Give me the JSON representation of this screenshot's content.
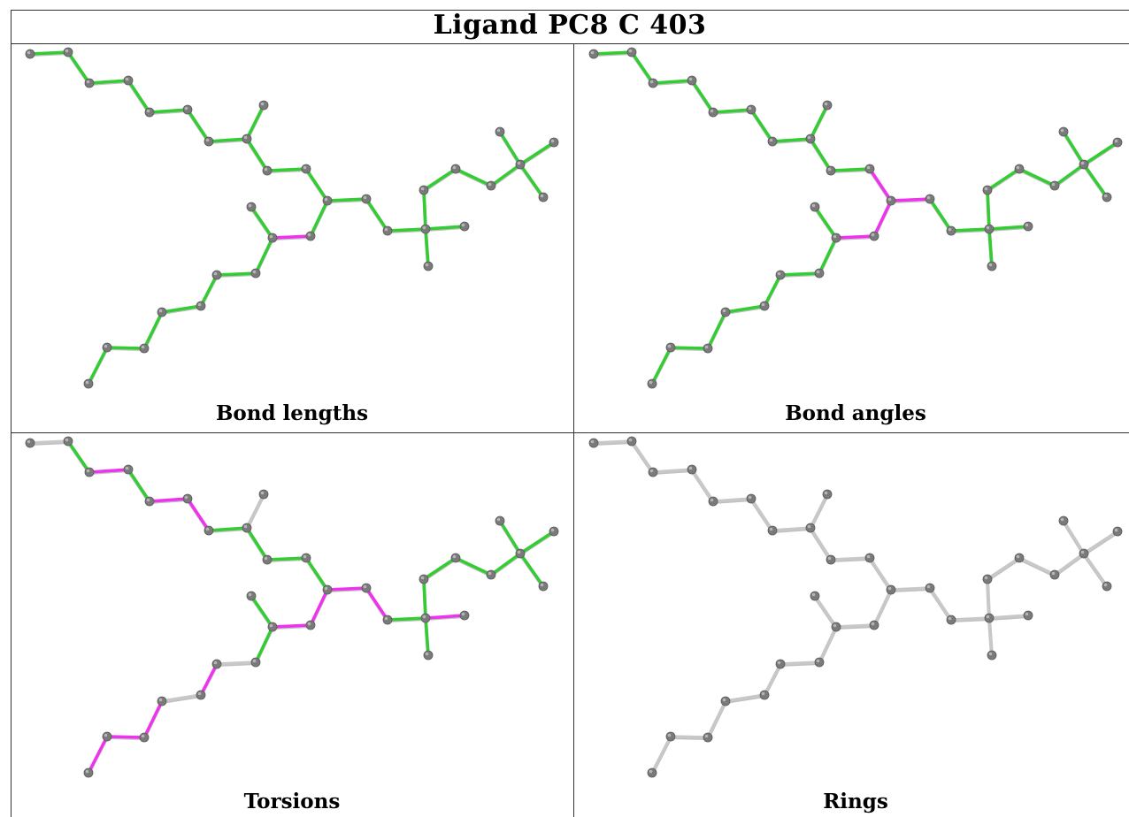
{
  "title": "Ligand PC8 C 403",
  "colors": {
    "ok": "#33cc33",
    "outlier": "#ee33ee",
    "neutral": "#c8c8c8",
    "atom": "#7a7a7a"
  },
  "panels": [
    {
      "caption": "Bond lengths",
      "outliers": [
        [
          17,
          18
        ]
      ],
      "neutral": []
    },
    {
      "caption": "Bond angles",
      "outliers": [
        [
          10,
          11
        ],
        [
          11,
          12
        ],
        [
          11,
          17
        ],
        [
          17,
          18
        ]
      ],
      "neutral": []
    },
    {
      "caption": "Torsions",
      "outliers": [
        [
          2,
          3
        ],
        [
          4,
          5
        ],
        [
          5,
          6
        ],
        [
          11,
          12
        ],
        [
          11,
          17
        ],
        [
          12,
          13
        ],
        [
          14,
          15
        ],
        [
          15,
          16
        ],
        [
          13,
          28
        ],
        [
          17,
          18
        ],
        [
          19,
          20
        ],
        [
          21,
          22
        ],
        [
          23,
          24
        ],
        [
          24,
          25
        ],
        [
          25,
          26
        ],
        [
          26,
          27
        ]
      ],
      "neutral": [
        [
          0,
          1
        ],
        [
          7,
          8
        ],
        [
          18,
          30
        ],
        [
          20,
          21
        ],
        [
          16,
          15
        ],
        [
          13,
          29
        ],
        [
          13,
          30
        ],
        [
          22,
          23
        ]
      ],
      "neutral_all": false
    },
    {
      "caption": "Rings",
      "outliers": [],
      "neutral": [],
      "neutral_all": true
    }
  ]
}
